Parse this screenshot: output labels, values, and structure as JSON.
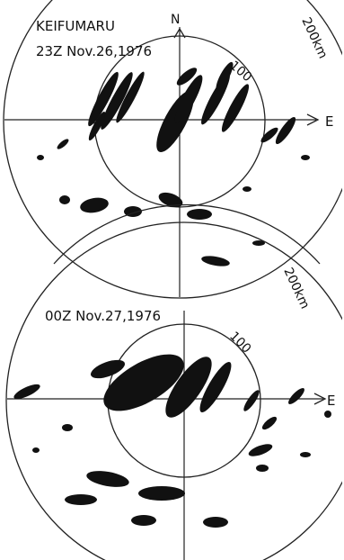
{
  "panels": [
    {
      "ship": "KEIFUMARU",
      "time": "23Z Nov.26,1976",
      "north": "N",
      "east": "E",
      "inner_range": "100",
      "outer_range": "200km"
    },
    {
      "time": "00Z Nov.27,1976",
      "east": "E",
      "inner_range": "100",
      "outer_range": "200km"
    }
  ]
}
